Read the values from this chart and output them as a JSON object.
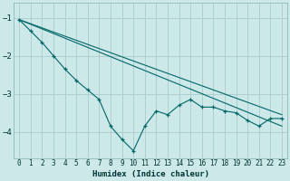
{
  "xlabel": "Humidex (Indice chaleur)",
  "bg_color": "#cce8e8",
  "grid_color": "#aacccc",
  "line_color": "#006666",
  "xlim": [
    -0.5,
    23.5
  ],
  "ylim": [
    -4.7,
    -0.6
  ],
  "yticks": [
    -4,
    -3,
    -2,
    -1
  ],
  "xticks": [
    0,
    1,
    2,
    3,
    4,
    5,
    6,
    7,
    8,
    9,
    10,
    11,
    12,
    13,
    14,
    15,
    16,
    17,
    18,
    19,
    20,
    21,
    22,
    23
  ],
  "x_data": [
    0,
    1,
    2,
    3,
    4,
    5,
    6,
    7,
    8,
    9,
    10,
    11,
    12,
    13,
    14,
    15,
    16,
    17,
    18,
    19,
    20,
    21,
    22,
    23
  ],
  "y_main": [
    -1.05,
    -1.35,
    -1.65,
    -2.0,
    -2.35,
    -2.65,
    -2.9,
    -3.15,
    -3.85,
    -4.2,
    -4.5,
    -3.85,
    -3.45,
    -3.55,
    -3.3,
    -3.15,
    -3.35,
    -3.35,
    -3.45,
    -3.5,
    -3.7,
    -3.85,
    -3.65,
    -3.65
  ],
  "line1": [
    [
      0,
      23
    ],
    [
      -1.05,
      -3.55
    ]
  ],
  "line2": [
    [
      0,
      23
    ],
    [
      -1.05,
      -3.85
    ]
  ]
}
